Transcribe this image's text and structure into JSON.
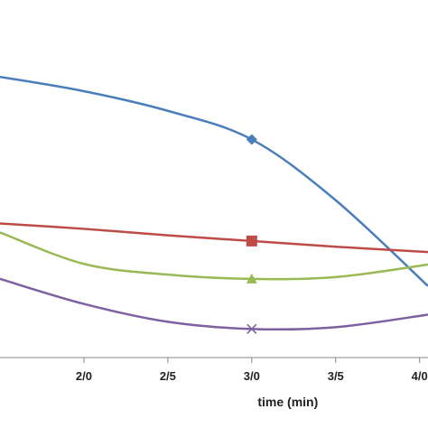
{
  "chart_data": {
    "type": "line",
    "xlabel": "time (min)",
    "x_tick_labels": [
      {
        "x": 2.0,
        "label": "2/0"
      },
      {
        "x": 2.5,
        "label": "2/5"
      },
      {
        "x": 3.0,
        "label": "3/0"
      },
      {
        "x": 3.5,
        "label": "3/5"
      },
      {
        "x": 4.0,
        "label": "4/0"
      }
    ],
    "xlim": [
      1.5,
      4.05
    ],
    "ylim": [
      0,
      1
    ],
    "y_tick_labels": [],
    "grid": false,
    "series": [
      {
        "color": "#4a7ebb",
        "marker": "diamond",
        "x": [
          1.5,
          2.0,
          2.5,
          3.0,
          3.5,
          4.05
        ],
        "y": [
          0.785,
          0.745,
          0.69,
          0.61,
          0.44,
          0.2
        ]
      },
      {
        "color": "#be4b48",
        "marker": "square",
        "x": [
          1.5,
          2.0,
          2.5,
          3.0,
          3.5,
          4.05
        ],
        "y": [
          0.375,
          0.36,
          0.342,
          0.326,
          0.31,
          0.295
        ]
      },
      {
        "color": "#98b954",
        "marker": "triangle",
        "x": [
          1.5,
          2.0,
          2.5,
          3.0,
          3.5,
          4.05
        ],
        "y": [
          0.35,
          0.262,
          0.232,
          0.22,
          0.225,
          0.26
        ]
      },
      {
        "color": "#7d60a0",
        "marker": "x",
        "x": [
          1.5,
          2.0,
          2.5,
          3.0,
          3.5,
          4.05
        ],
        "y": [
          0.22,
          0.15,
          0.1,
          0.08,
          0.085,
          0.12
        ]
      }
    ]
  }
}
